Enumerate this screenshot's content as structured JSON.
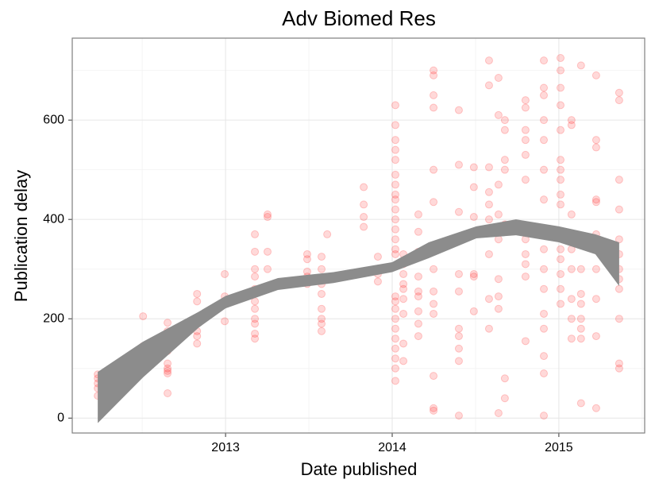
{
  "chart_data": {
    "type": "scatter",
    "title": "Adv Biomed Res",
    "x_label": "Date published",
    "y_label": "Publication delay",
    "xlim": [
      2012.08,
      2015.515
    ],
    "ylim": [
      -30,
      765
    ],
    "xticks": [
      2013,
      2014,
      2015
    ],
    "yticks": [
      0,
      200,
      400,
      600
    ],
    "x_minor_grid": [
      2012.5,
      2013.5,
      2014.5,
      2015.5
    ],
    "y_minor_grid": [
      100,
      300,
      500,
      700
    ],
    "grid": true,
    "series": [
      {
        "color": "#ff0000",
        "x": [
          2012.233,
          2012.233,
          2012.233,
          2012.233,
          2012.233,
          2012.352,
          2012.352,
          2012.352,
          2012.352,
          2012.505,
          2012.505,
          2012.505,
          2012.505,
          2012.505,
          2012.505,
          2012.652,
          2012.652,
          2012.652,
          2012.652,
          2012.652,
          2012.652,
          2012.652,
          2012.652,
          2012.652,
          2012.829,
          2012.829,
          2012.829,
          2012.829,
          2012.829,
          2012.995,
          2012.995,
          2012.995,
          2013.176,
          2013.176,
          2013.176,
          2013.176,
          2013.176,
          2013.176,
          2013.176,
          2013.176,
          2013.176,
          2013.176,
          2013.176,
          2013.252,
          2013.252,
          2013.252,
          2013.252,
          2013.49,
          2013.49,
          2013.49,
          2013.49,
          2013.49,
          2013.576,
          2013.576,
          2013.576,
          2013.576,
          2013.576,
          2013.576,
          2013.576,
          2013.576,
          2013.576,
          2013.61,
          2013.829,
          2013.829,
          2013.829,
          2013.829,
          2013.914,
          2013.914,
          2013.914,
          2014.019,
          2014.019,
          2014.019,
          2014.019,
          2014.019,
          2014.019,
          2014.019,
          2014.019,
          2014.019,
          2014.019,
          2014.019,
          2014.019,
          2014.019,
          2014.019,
          2014.019,
          2014.019,
          2014.019,
          2014.019,
          2014.019,
          2014.019,
          2014.019,
          2014.019,
          2014.019,
          2014.019,
          2014.019,
          2014.067,
          2014.067,
          2014.067,
          2014.067,
          2014.067,
          2014.067,
          2014.067,
          2014.067,
          2014.067,
          2014.157,
          2014.157,
          2014.157,
          2014.157,
          2014.157,
          2014.157,
          2014.157,
          2014.157,
          2014.157,
          2014.248,
          2014.248,
          2014.248,
          2014.248,
          2014.248,
          2014.248,
          2014.248,
          2014.248,
          2014.248,
          2014.248,
          2014.248,
          2014.248,
          2014.248,
          2014.4,
          2014.4,
          2014.4,
          2014.4,
          2014.4,
          2014.4,
          2014.4,
          2014.4,
          2014.4,
          2014.4,
          2014.49,
          2014.49,
          2014.49,
          2014.49,
          2014.49,
          2014.49,
          2014.581,
          2014.581,
          2014.581,
          2014.581,
          2014.581,
          2014.581,
          2014.581,
          2014.581,
          2014.581,
          2014.638,
          2014.638,
          2014.638,
          2014.638,
          2014.638,
          2014.638,
          2014.638,
          2014.638,
          2014.638,
          2014.638,
          2014.676,
          2014.676,
          2014.676,
          2014.676,
          2014.676,
          2014.676,
          2014.676,
          2014.676,
          2014.8,
          2014.8,
          2014.8,
          2014.8,
          2014.8,
          2014.8,
          2014.8,
          2014.8,
          2014.8,
          2014.8,
          2014.8,
          2014.91,
          2014.91,
          2014.91,
          2014.91,
          2014.91,
          2014.91,
          2014.91,
          2014.91,
          2014.91,
          2014.91,
          2014.91,
          2014.91,
          2014.91,
          2014.91,
          2014.91,
          2015.01,
          2015.01,
          2015.01,
          2015.01,
          2015.01,
          2015.01,
          2015.01,
          2015.01,
          2015.01,
          2015.01,
          2015.01,
          2015.01,
          2015.01,
          2015.01,
          2015.01,
          2015.01,
          2015.076,
          2015.076,
          2015.076,
          2015.076,
          2015.076,
          2015.076,
          2015.076,
          2015.076,
          2015.076,
          2015.133,
          2015.133,
          2015.133,
          2015.133,
          2015.133,
          2015.133,
          2015.133,
          2015.133,
          2015.133,
          2015.224,
          2015.224,
          2015.224,
          2015.224,
          2015.224,
          2015.224,
          2015.224,
          2015.224,
          2015.224,
          2015.224,
          2015.362,
          2015.362,
          2015.362,
          2015.362,
          2015.362,
          2015.362,
          2015.362,
          2015.362,
          2015.362,
          2015.362,
          2015.362,
          2015.362
        ],
        "values": [
          45,
          60,
          70,
          80,
          88,
          78,
          82,
          85,
          110,
          115,
          120,
          130,
          140,
          145,
          205,
          50,
          90,
          95,
          100,
          110,
          135,
          160,
          175,
          192,
          150,
          165,
          175,
          235,
          250,
          195,
          245,
          290,
          160,
          170,
          190,
          200,
          220,
          235,
          260,
          285,
          300,
          335,
          370,
          300,
          335,
          405,
          410,
          270,
          285,
          295,
          320,
          330,
          175,
          190,
          200,
          220,
          250,
          270,
          280,
          300,
          325,
          370,
          385,
          405,
          430,
          465,
          275,
          290,
          325,
          75,
          100,
          120,
          140,
          160,
          180,
          200,
          220,
          235,
          245,
          330,
          340,
          360,
          380,
          400,
          420,
          440,
          450,
          470,
          490,
          520,
          540,
          560,
          590,
          630,
          115,
          150,
          210,
          240,
          260,
          270,
          290,
          310,
          330,
          165,
          190,
          215,
          245,
          255,
          285,
          335,
          375,
          410,
          15,
          20,
          85,
          210,
          230,
          255,
          300,
          435,
          500,
          625,
          650,
          690,
          700,
          5,
          115,
          140,
          165,
          180,
          255,
          290,
          415,
          510,
          620,
          215,
          285,
          290,
          405,
          465,
          505,
          180,
          240,
          330,
          400,
          430,
          455,
          505,
          670,
          720,
          10,
          220,
          245,
          280,
          360,
          380,
          410,
          470,
          610,
          685,
          40,
          80,
          375,
          390,
          500,
          520,
          580,
          600,
          155,
          285,
          310,
          330,
          360,
          480,
          530,
          560,
          580,
          625,
          640,
          5,
          90,
          125,
          180,
          210,
          260,
          300,
          340,
          440,
          500,
          560,
          600,
          650,
          665,
          720,
          230,
          260,
          290,
          320,
          340,
          370,
          430,
          450,
          480,
          500,
          520,
          580,
          630,
          665,
          700,
          725,
          160,
          200,
          240,
          300,
          340,
          370,
          410,
          590,
          600,
          30,
          160,
          180,
          200,
          230,
          250,
          300,
          350,
          710,
          20,
          165,
          240,
          300,
          370,
          435,
          440,
          545,
          560,
          690,
          100,
          110,
          200,
          260,
          280,
          300,
          330,
          360,
          420,
          480,
          640,
          655
        ]
      }
    ],
    "band": {
      "color": "#8c8c8c",
      "x": [
        2012.233,
        2012.505,
        2012.838,
        2013,
        2013.314,
        2013.648,
        2014,
        2014.219,
        2014.505,
        2014.743,
        2015,
        2015.219,
        2015.362
      ],
      "lower": [
        -10,
        82,
        182,
        221,
        258,
        272,
        294,
        322,
        362,
        368,
        354,
        330,
        266
      ],
      "upper": [
        93,
        154,
        214,
        246,
        282,
        294,
        314,
        354,
        386,
        400,
        386,
        370,
        354
      ]
    }
  }
}
